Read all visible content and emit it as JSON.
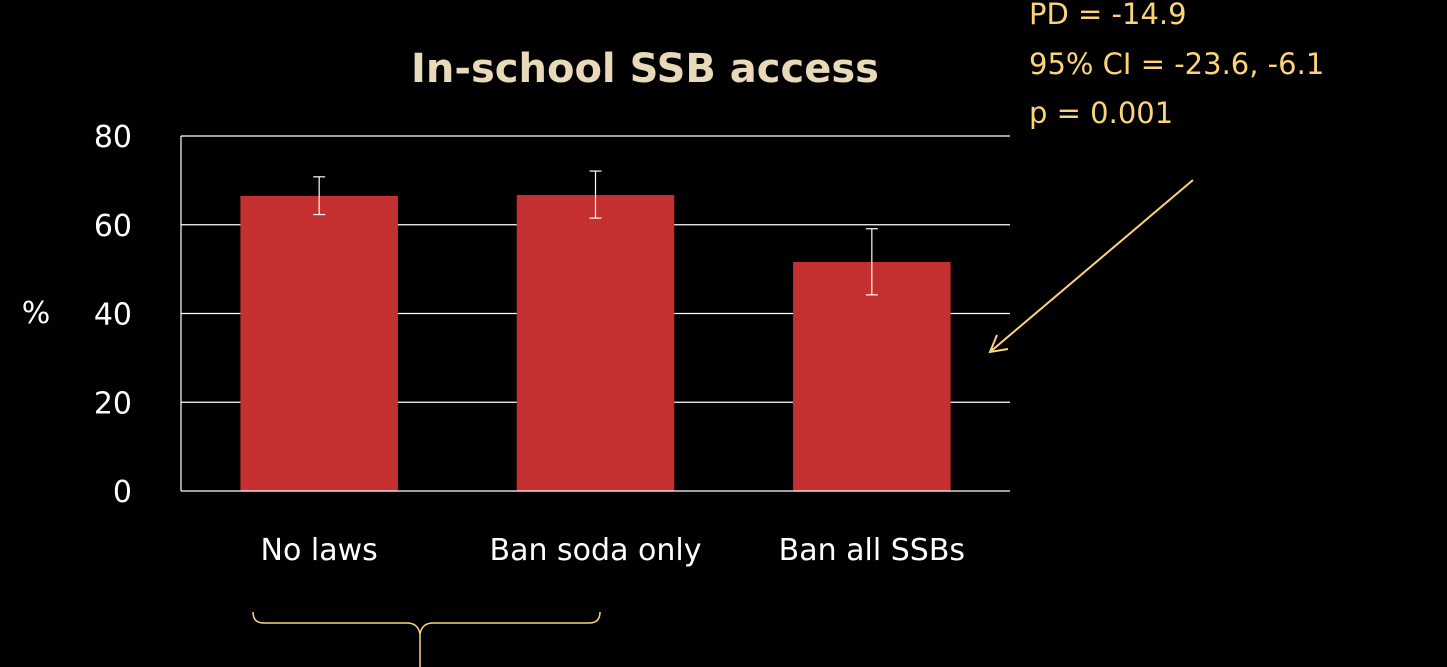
{
  "chart_data": {
    "type": "bar",
    "title": "In-school SSB access",
    "xlabel": "",
    "ylabel": "%",
    "ylim": [
      0,
      80
    ],
    "yticks": [
      0,
      20,
      40,
      60,
      80
    ],
    "grid": true,
    "categories": [
      "No laws",
      "Ban soda only",
      "Ban all SSBs"
    ],
    "values": [
      66.5,
      66.7,
      51.6
    ],
    "error_low": [
      62.3,
      61.5,
      44.2
    ],
    "error_high": [
      70.8,
      72.1,
      59.1
    ],
    "annotation": {
      "lines": [
        "PD = -14.9",
        "95% CI = -23.6, -6.1",
        "p = 0.001"
      ],
      "points_to": "Ban all SSBs"
    },
    "bracket_spans": [
      "No laws",
      "Ban soda only"
    ]
  },
  "colors": {
    "background": "#000000",
    "bar": "#c43030",
    "text": "#ffffff",
    "title": "#e8d9b8",
    "annotation": "#fbd47a",
    "grid": "#ffffff",
    "error_bar": "#ffffff"
  }
}
